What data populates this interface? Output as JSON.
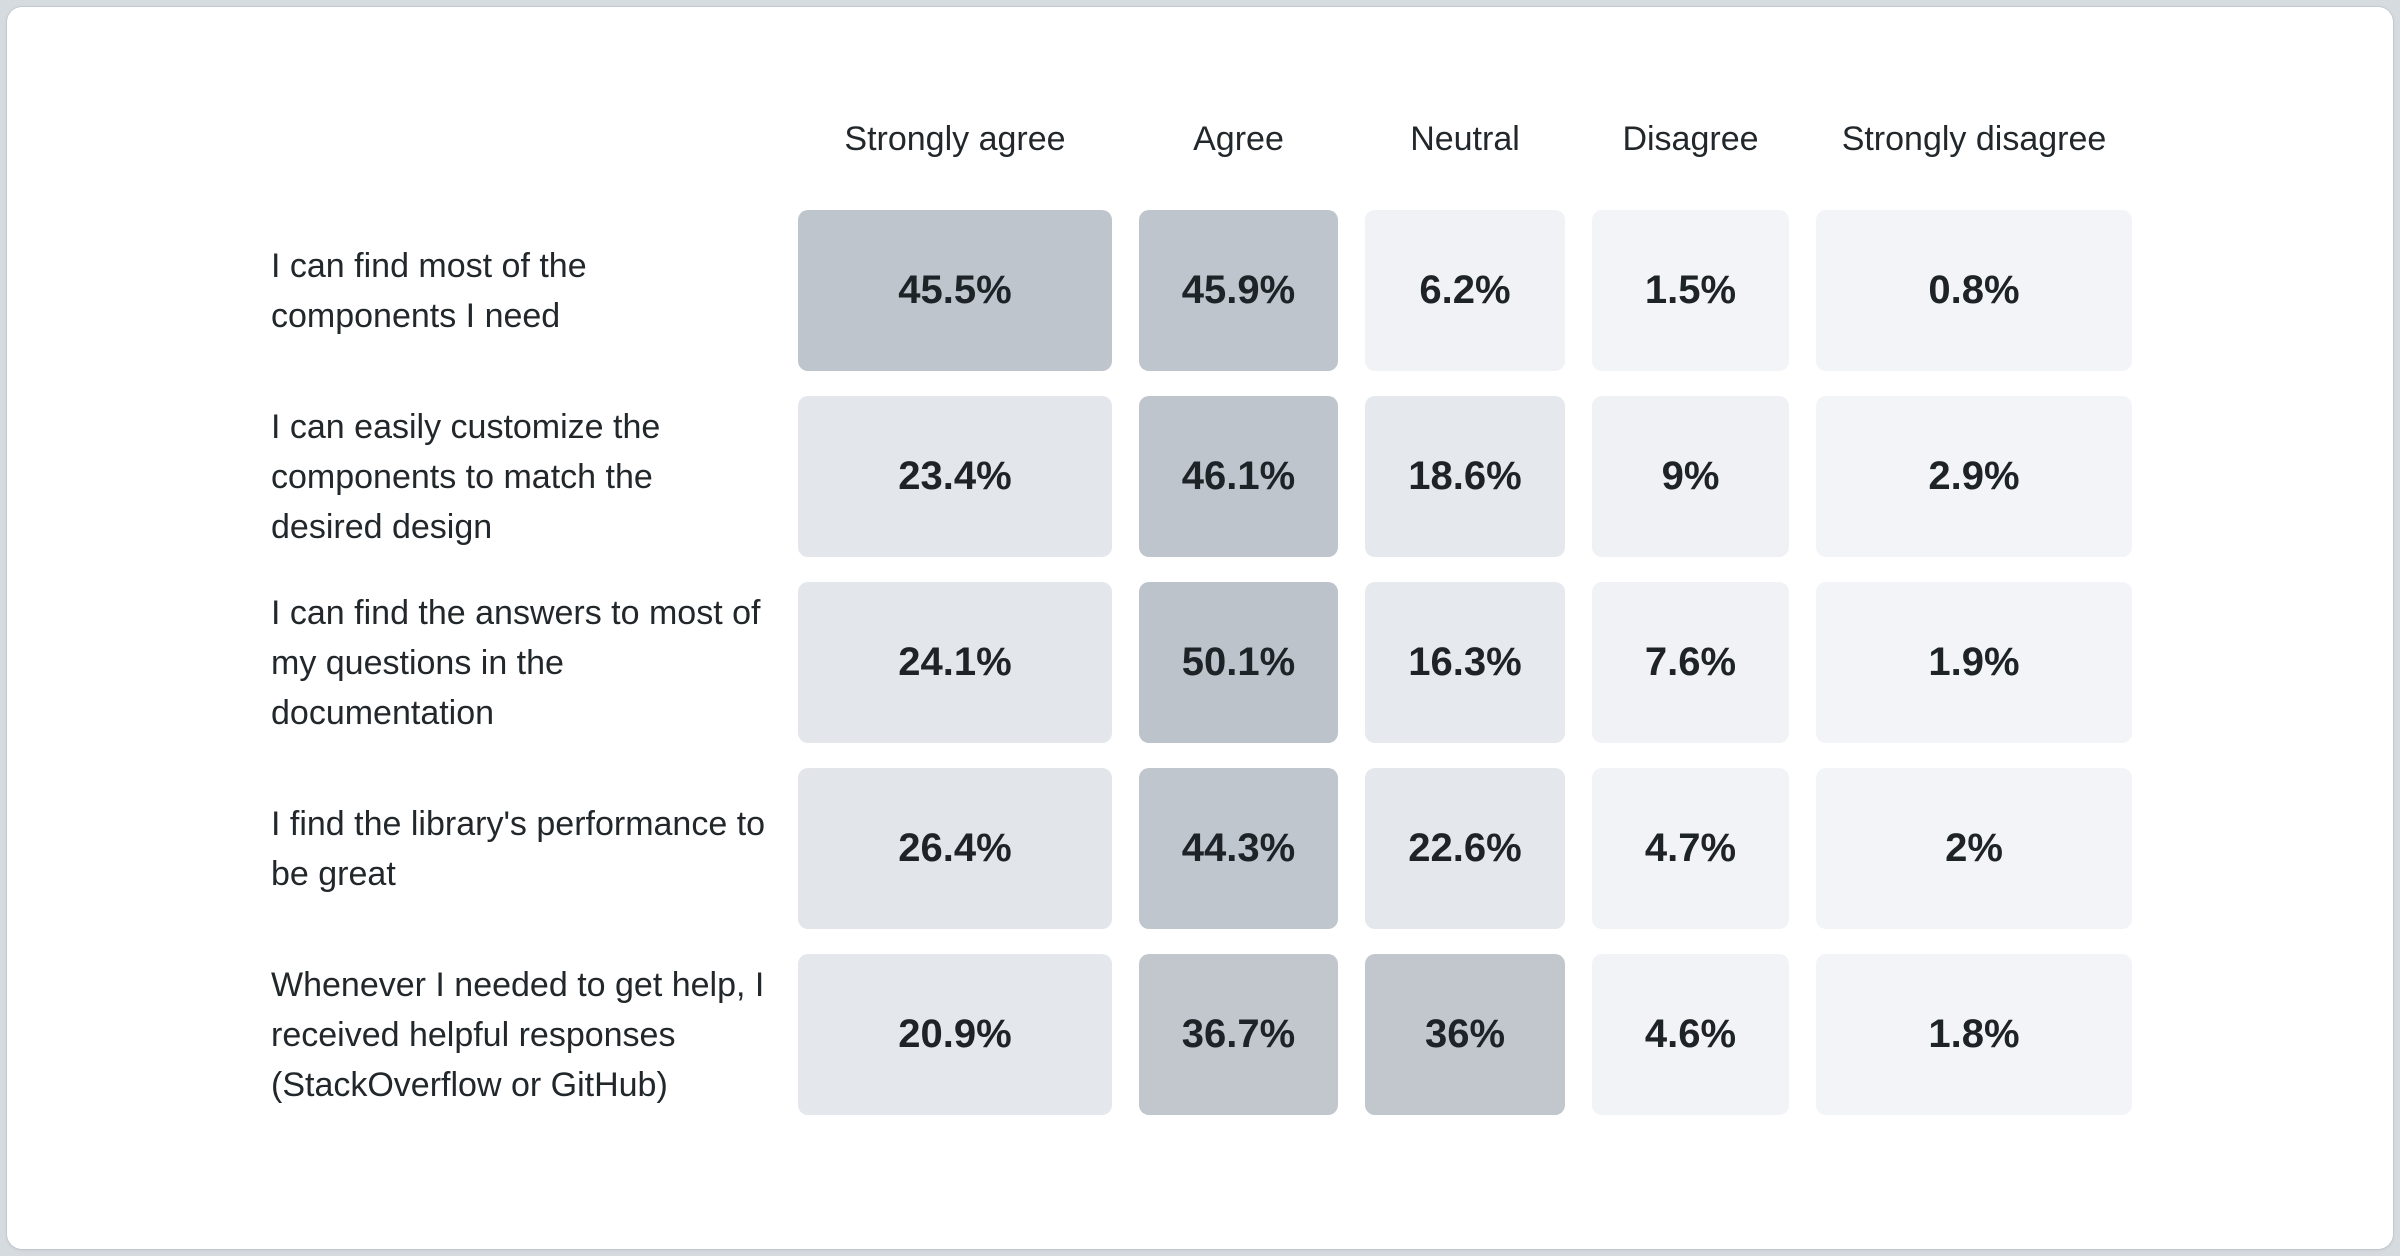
{
  "page": {
    "background_color": "#d6dbe0",
    "card_background_color": "#ffffff"
  },
  "chart_data": {
    "type": "heatmap",
    "title": "",
    "columns": [
      "Strongly agree",
      "Agree",
      "Neutral",
      "Disagree",
      "Strongly disagree"
    ],
    "rows": [
      {
        "label": "I can find most of the components I need",
        "values": [
          45.5,
          45.9,
          6.2,
          1.5,
          0.8
        ],
        "display": [
          "45.5%",
          "45.9%",
          "6.2%",
          "1.5%",
          "0.8%"
        ]
      },
      {
        "label": "I can easily customize the components to match the desired design",
        "values": [
          23.4,
          46.1,
          18.6,
          9,
          2.9
        ],
        "display": [
          "23.4%",
          "46.1%",
          "18.6%",
          "9%",
          "2.9%"
        ]
      },
      {
        "label": "I can find the answers to most of my questions in the documentation",
        "values": [
          24.1,
          50.1,
          16.3,
          7.6,
          1.9
        ],
        "display": [
          "24.1%",
          "50.1%",
          "16.3%",
          "7.6%",
          "1.9%"
        ]
      },
      {
        "label": "I find the library's performance to be great",
        "values": [
          26.4,
          44.3,
          22.6,
          4.7,
          2
        ],
        "display": [
          "26.4%",
          "44.3%",
          "22.6%",
          "4.7%",
          "2%"
        ]
      },
      {
        "label": "Whenever I needed to get help, I received helpful responses (StackOverflow or GitHub)",
        "values": [
          20.9,
          36.7,
          36,
          4.6,
          1.8
        ],
        "display": [
          "20.9%",
          "36.7%",
          "36%",
          "4.6%",
          "1.8%"
        ]
      }
    ],
    "label_text_color": "#21272a",
    "cell_text_color": "#1e2328",
    "heat_colormap_anchors": [
      [
        0,
        "#f2f4f8"
      ],
      [
        3,
        "#f2f4f8"
      ],
      [
        9,
        "#eff1f5"
      ],
      [
        16,
        "#e6e9ed"
      ],
      [
        27,
        "#e2e5ea"
      ],
      [
        36,
        "#c2c7ce"
      ],
      [
        44,
        "#c0c6cd"
      ],
      [
        51,
        "#bcc2c9"
      ]
    ],
    "legend": "none",
    "grid": "off"
  }
}
